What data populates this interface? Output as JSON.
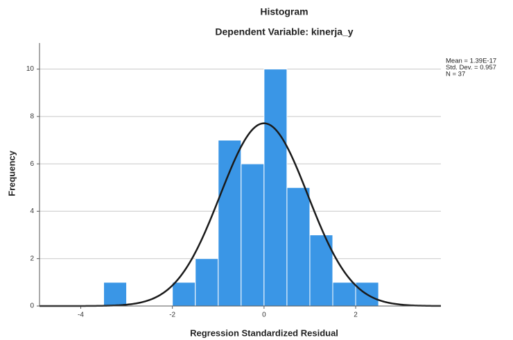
{
  "chart_data": {
    "type": "histogram",
    "title": "Histogram",
    "subtitle": "Dependent Variable: kinerja_y",
    "x_label": "Regression Standardized Residual",
    "y_label": "Frequency",
    "bins": [
      -3.5,
      -3.0,
      -2.5,
      -2.0,
      -1.5,
      -1.0,
      -0.5,
      0,
      0.5,
      1.0,
      1.5,
      2.0,
      2.5
    ],
    "values": [
      1,
      0,
      0,
      1,
      2,
      7,
      6,
      10,
      5,
      3,
      1,
      1
    ],
    "color": "#3a96e6",
    "xlim": [
      -4.9,
      3.86
    ],
    "xticks": [
      -4,
      -2,
      0,
      2
    ],
    "ylim": [
      0,
      11.1
    ],
    "yticks": [
      0,
      2,
      4,
      6,
      8,
      10
    ],
    "grid": true,
    "normal_curve": {
      "mean": 1.39e-17,
      "std": 0.957,
      "n": 37,
      "color": "#1a1a1a"
    },
    "stats_labels": [
      "Mean = 1.39E-17",
      "Std. Dev. = 0.957",
      "N = 37"
    ]
  }
}
